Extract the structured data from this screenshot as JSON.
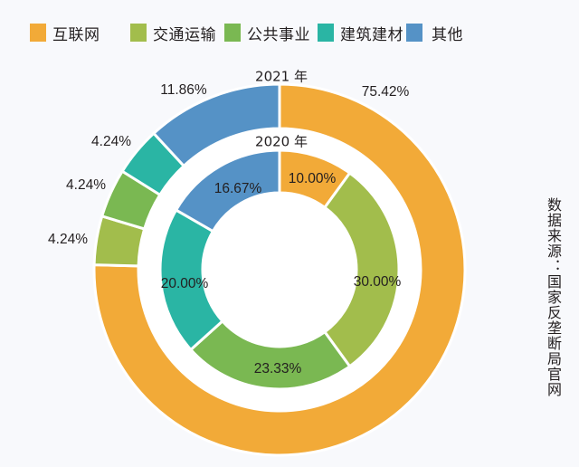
{
  "legend": [
    {
      "label": "互联网",
      "color": "#f2aa38"
    },
    {
      "label": "交通运输",
      "color": "#a2bd4c"
    },
    {
      "label": "公共事业",
      "color": "#7ab852"
    },
    {
      "label": "建筑建材",
      "color": "#2ab5a4"
    },
    {
      "label": "其他",
      "color": "#5592c6"
    }
  ],
  "outer_ring": {
    "year_label": "2021 年",
    "labels": [
      "75.42%",
      "4.24%",
      "4.24%",
      "4.24%",
      "11.86%"
    ]
  },
  "inner_ring": {
    "year_label": "2020 年",
    "labels": [
      "10.00%",
      "30.00%",
      "23.33%",
      "20.00%",
      "16.67%"
    ]
  },
  "source": "数据来源：国家反垄断局官网",
  "chart_data": {
    "type": "pie",
    "subtype": "nested-donut",
    "title": "",
    "categories": [
      "互联网",
      "交通运输",
      "公共事业",
      "建筑建材",
      "其他"
    ],
    "colors": [
      "#f2aa38",
      "#a2bd4c",
      "#7ab852",
      "#2ab5a4",
      "#5592c6"
    ],
    "series": [
      {
        "name": "2021 年",
        "ring": "outer",
        "values": [
          75.42,
          4.24,
          4.24,
          4.24,
          11.86
        ]
      },
      {
        "name": "2020 年",
        "ring": "inner",
        "values": [
          10.0,
          30.0,
          23.33,
          20.0,
          16.67
        ]
      }
    ],
    "start_angle": "12 o'clock, clockwise",
    "legend_position": "top",
    "annotation": "数据来源：国家反垄断局官网"
  }
}
